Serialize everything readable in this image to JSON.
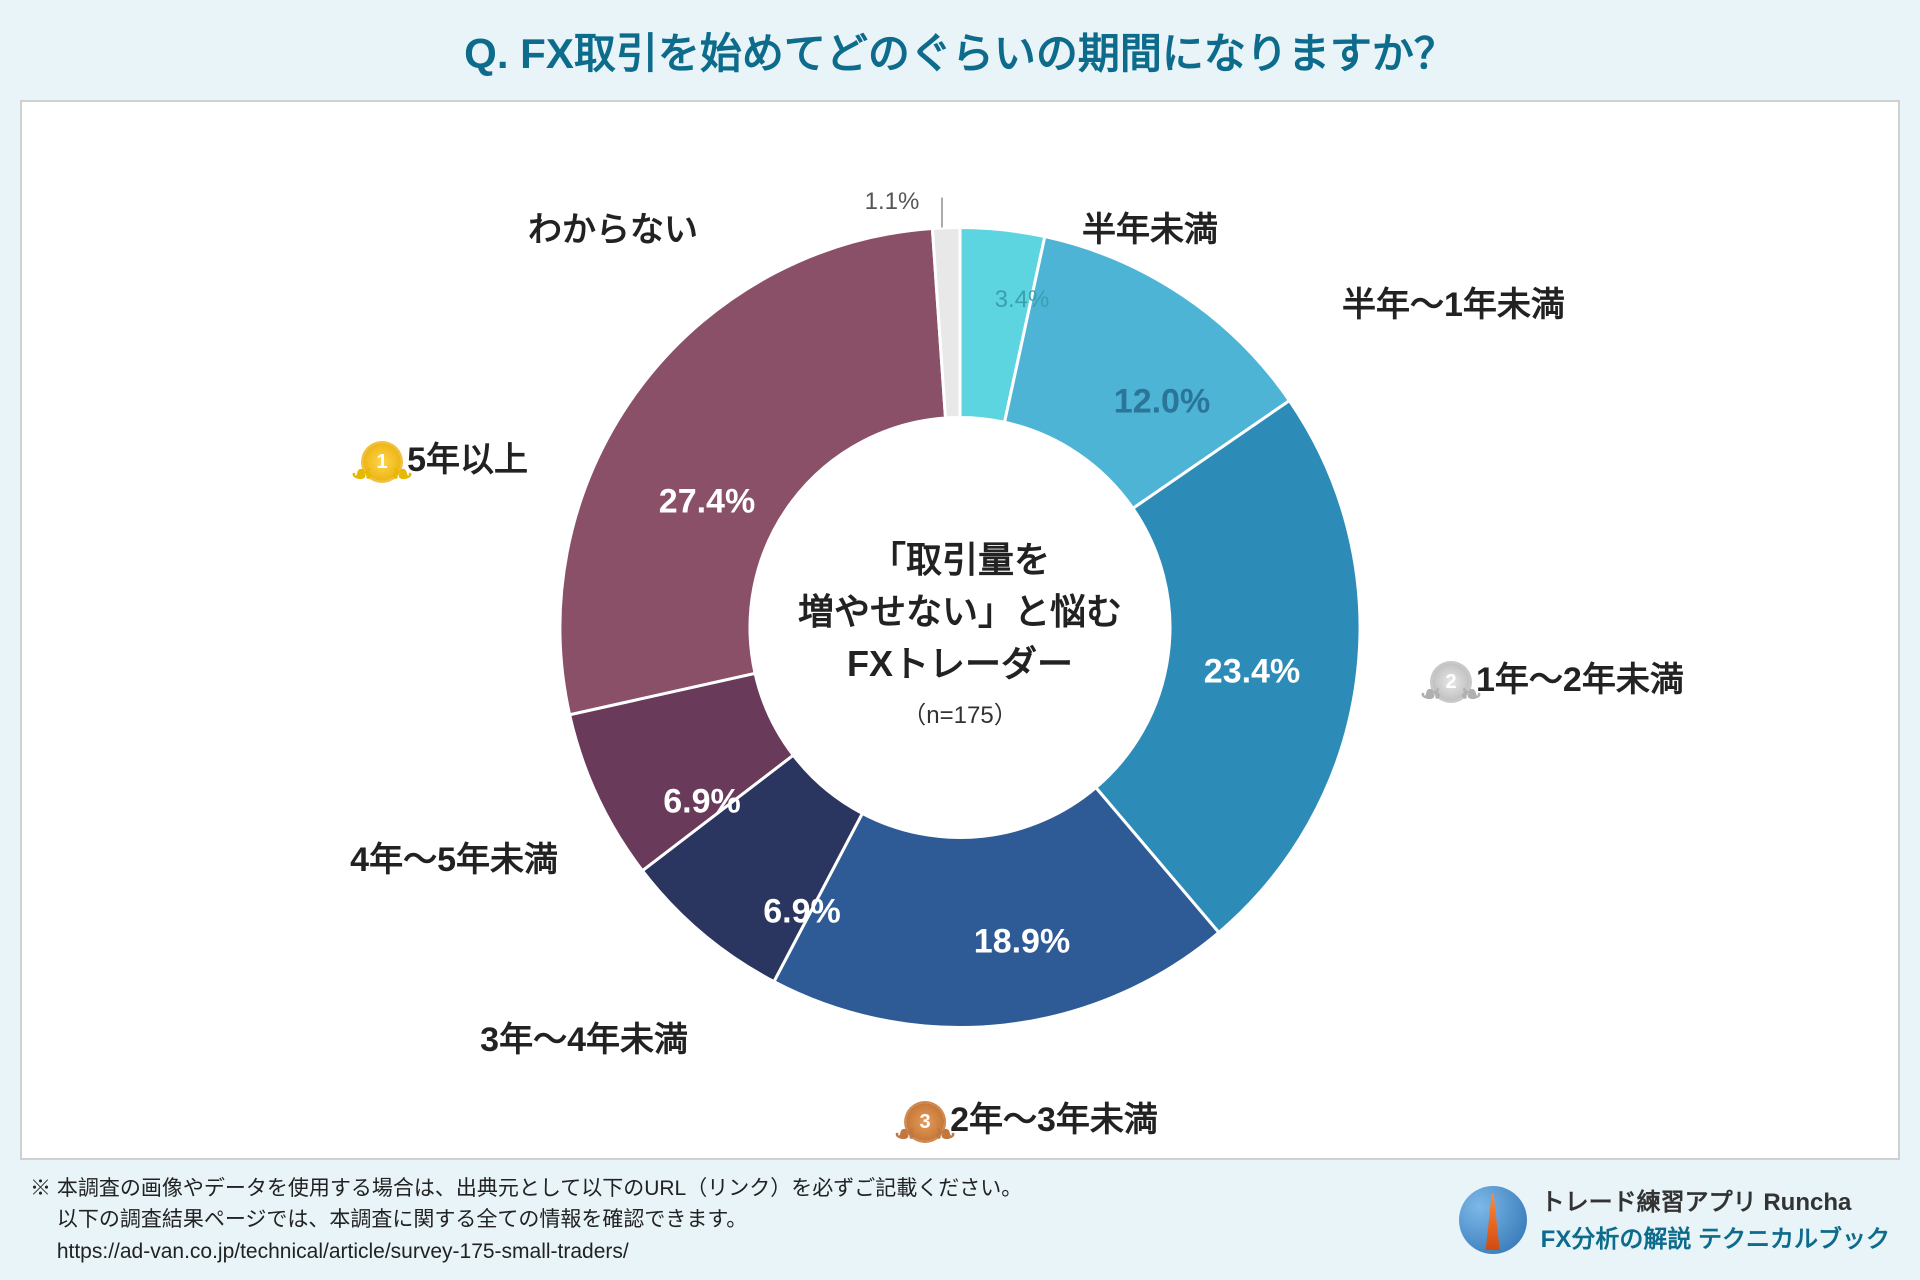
{
  "header": {
    "title": "Q. FX取引を始めてどのぐらいの期間になりますか？"
  },
  "chart": {
    "type": "donut",
    "outer_radius": 400,
    "inner_radius": 210,
    "background_color": "#ffffff",
    "start_angle_deg": -90,
    "center": {
      "line1": "「取引量を",
      "line2": "増やせない」と悩む",
      "line3": "FXトレーダー",
      "n": "（n=175）"
    },
    "slices": [
      {
        "label": "半年未満",
        "value": 3.4,
        "pct": "3.4%",
        "color": "#5dd5e0",
        "pct_color": "#3aa0b0",
        "medal": null,
        "pct_outside": true
      },
      {
        "label": "半年～1年未満",
        "value": 12.0,
        "pct": "12.0%",
        "color": "#4db4d6",
        "pct_color": "#2a7598",
        "medal": null,
        "pct_outside": false
      },
      {
        "label": "1年～2年未満",
        "value": 23.4,
        "pct": "23.4%",
        "color": "#2d8bb8",
        "pct_color": "#ffffff",
        "medal": "silver",
        "pct_outside": false
      },
      {
        "label": "2年～3年未満",
        "value": 18.9,
        "pct": "18.9%",
        "color": "#2e5a96",
        "pct_color": "#ffffff",
        "medal": "bronze",
        "pct_outside": false
      },
      {
        "label": "3年～4年未満",
        "value": 6.9,
        "pct": "6.9%",
        "color": "#2a3560",
        "pct_color": "#ffffff",
        "medal": null,
        "pct_outside": false
      },
      {
        "label": "4年～5年未満",
        "value": 6.9,
        "pct": "6.9%",
        "color": "#6a3a5a",
        "pct_color": "#ffffff",
        "medal": null,
        "pct_outside": false
      },
      {
        "label": "5年以上",
        "value": 27.4,
        "pct": "27.4%",
        "color": "#8a5068",
        "pct_color": "#ffffff",
        "medal": "gold",
        "pct_outside": false
      },
      {
        "label": "わからない",
        "value": 1.1,
        "pct": "1.1%",
        "color": "#e8e8e8",
        "pct_color": "#555555",
        "medal": null,
        "pct_outside": true
      }
    ],
    "label_fontsize": 34,
    "pct_fontsize": 34
  },
  "footer": {
    "line1": "※ 本調査の画像やデータを使用する場合は、出典元として以下のURL（リンク）を必ずご記載ください。",
    "line2": "　 以下の調査結果ページでは、本調査に関する全ての情報を確認できます。",
    "line3": "　 https://ad-van.co.jp/technical/article/survey-175-small-traders/",
    "brand1": "トレード練習アプリ  Runcha",
    "brand2": "FX分析の解説  テクニカルブック"
  },
  "colors": {
    "page_bg": "#e8f4f8",
    "panel_bg": "#ffffff",
    "title_color": "#0d6b8c"
  }
}
